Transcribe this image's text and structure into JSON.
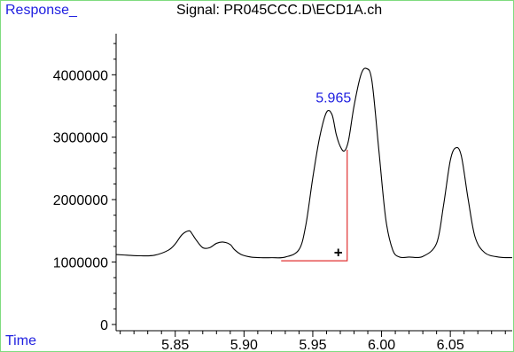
{
  "chart_data": {
    "type": "line",
    "title": "Signal: PR045CCC.D\\ECD1A.ch",
    "xlabel": "Time",
    "ylabel": "Response_",
    "xlim": [
      5.807,
      6.095
    ],
    "ylim": [
      -100000,
      4800000
    ],
    "x_ticks": [
      "5.85",
      "5.90",
      "5.95",
      "6.00",
      "6.05"
    ],
    "x_tick_values": [
      5.85,
      5.9,
      5.95,
      6.0,
      6.05
    ],
    "y_ticks": [
      "0",
      "1000000",
      "2000000",
      "3000000",
      "4000000"
    ],
    "y_tick_values": [
      0,
      1000000,
      2000000,
      3000000,
      4000000
    ],
    "series": [
      {
        "x": [
          5.807,
          5.815,
          5.825,
          5.835,
          5.845,
          5.85,
          5.855,
          5.86,
          5.862,
          5.865,
          5.87,
          5.875,
          5.88,
          5.885,
          5.89,
          5.893,
          5.898,
          5.905,
          5.912,
          5.92,
          5.93,
          5.94,
          5.945,
          5.95,
          5.955,
          5.96,
          5.964,
          5.967,
          5.97,
          5.973,
          5.976,
          5.98,
          5.985,
          5.989,
          5.993,
          5.998,
          6.003,
          6.008,
          6.013,
          6.02,
          6.03,
          6.04,
          6.045,
          6.05,
          6.054,
          6.058,
          6.063,
          6.068,
          6.075,
          6.085,
          6.095
        ],
        "y": [
          1120000,
          1110000,
          1100000,
          1110000,
          1190000,
          1290000,
          1440000,
          1500000,
          1460000,
          1360000,
          1230000,
          1230000,
          1300000,
          1320000,
          1280000,
          1200000,
          1120000,
          1080000,
          1070000,
          1070000,
          1080000,
          1200000,
          1600000,
          2350000,
          3000000,
          3400000,
          3360000,
          3050000,
          2850000,
          2780000,
          2950000,
          3500000,
          4000000,
          4100000,
          3900000,
          2800000,
          1700000,
          1200000,
          1080000,
          1080000,
          1090000,
          1300000,
          1900000,
          2630000,
          2830000,
          2700000,
          2000000,
          1400000,
          1150000,
          1080000,
          1070000
        ],
        "color": "#000000"
      }
    ],
    "annotations": [
      {
        "text": "5.965",
        "x": 5.965,
        "y": 3560000,
        "color": "#1f1fe0"
      },
      {
        "text": "+",
        "x": 5.9685,
        "y": 1160000,
        "color": "#000000"
      }
    ],
    "integration_baseline": {
      "x_start": 5.927,
      "x_end": 5.975,
      "y_base": 1020000,
      "y_top": 2800000,
      "color": "#e03030"
    },
    "grid": false
  }
}
